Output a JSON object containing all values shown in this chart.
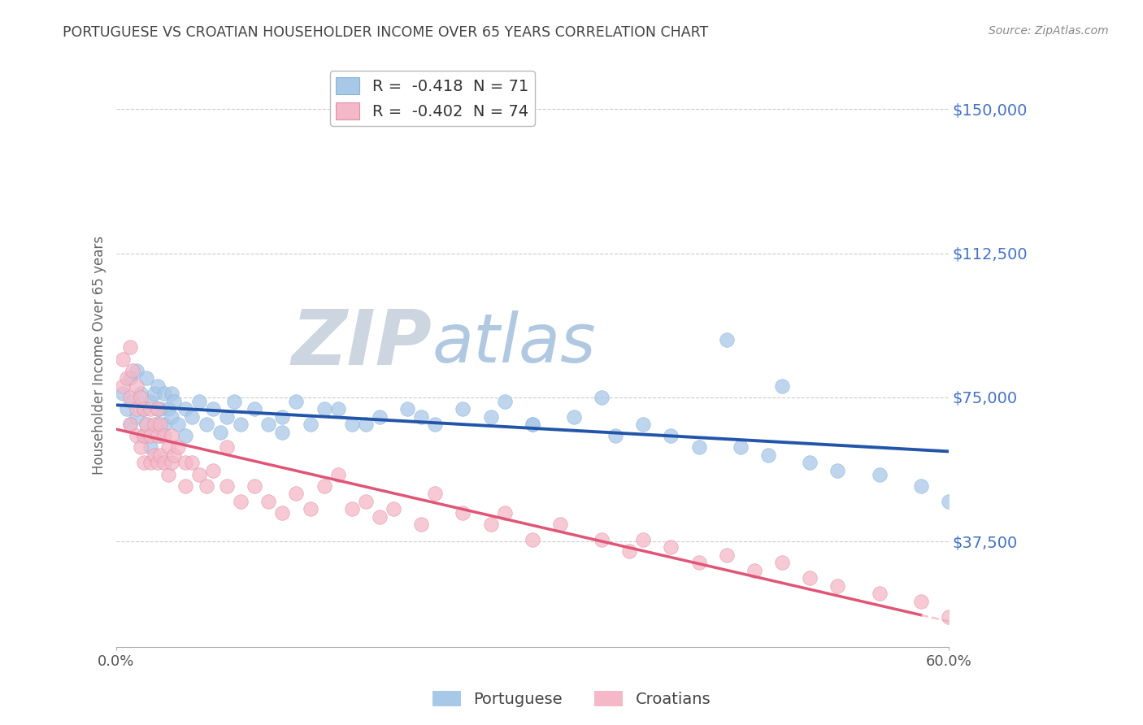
{
  "title": "PORTUGUESE VS CROATIAN HOUSEHOLDER INCOME OVER 65 YEARS CORRELATION CHART",
  "source": "Source: ZipAtlas.com",
  "ylabel": "Householder Income Over 65 years",
  "yticks": [
    37500,
    75000,
    112500,
    150000
  ],
  "xlim": [
    0.0,
    0.6
  ],
  "ylim": [
    10000,
    162000
  ],
  "color_blue": "#a8c8e8",
  "color_pink": "#f4b8c8",
  "color_blue_line": "#2255aa",
  "color_pink_line": "#e05575",
  "color_pink_dash": "#e8a0b0",
  "axis_label_color": "#4472c4",
  "watermark_zip_color": "#d5dde8",
  "watermark_atlas_color": "#b8cce0",
  "portuguese_x": [
    0.005,
    0.008,
    0.01,
    0.01,
    0.012,
    0.015,
    0.015,
    0.018,
    0.02,
    0.02,
    0.022,
    0.022,
    0.025,
    0.025,
    0.028,
    0.03,
    0.03,
    0.03,
    0.032,
    0.032,
    0.035,
    0.035,
    0.038,
    0.04,
    0.04,
    0.042,
    0.045,
    0.05,
    0.05,
    0.055,
    0.06,
    0.065,
    0.07,
    0.075,
    0.08,
    0.085,
    0.09,
    0.1,
    0.11,
    0.12,
    0.13,
    0.14,
    0.15,
    0.17,
    0.19,
    0.21,
    0.23,
    0.25,
    0.27,
    0.3,
    0.33,
    0.36,
    0.38,
    0.4,
    0.42,
    0.45,
    0.47,
    0.5,
    0.52,
    0.55,
    0.58,
    0.6,
    0.48,
    0.44,
    0.35,
    0.3,
    0.28,
    0.22,
    0.18,
    0.16,
    0.12
  ],
  "portuguese_y": [
    76000,
    72000,
    80000,
    68000,
    74000,
    82000,
    70000,
    76000,
    72000,
    65000,
    80000,
    68000,
    74000,
    62000,
    76000,
    72000,
    68000,
    78000,
    65000,
    72000,
    76000,
    68000,
    72000,
    76000,
    70000,
    74000,
    68000,
    72000,
    65000,
    70000,
    74000,
    68000,
    72000,
    66000,
    70000,
    74000,
    68000,
    72000,
    68000,
    70000,
    74000,
    68000,
    72000,
    68000,
    70000,
    72000,
    68000,
    72000,
    70000,
    68000,
    70000,
    65000,
    68000,
    65000,
    62000,
    62000,
    60000,
    58000,
    56000,
    55000,
    52000,
    48000,
    78000,
    90000,
    75000,
    68000,
    74000,
    70000,
    68000,
    72000,
    66000
  ],
  "croatian_x": [
    0.005,
    0.005,
    0.008,
    0.01,
    0.01,
    0.01,
    0.012,
    0.015,
    0.015,
    0.015,
    0.018,
    0.018,
    0.02,
    0.02,
    0.02,
    0.022,
    0.025,
    0.025,
    0.025,
    0.028,
    0.028,
    0.03,
    0.03,
    0.03,
    0.032,
    0.032,
    0.035,
    0.035,
    0.038,
    0.038,
    0.04,
    0.04,
    0.042,
    0.045,
    0.05,
    0.05,
    0.055,
    0.06,
    0.065,
    0.07,
    0.08,
    0.09,
    0.1,
    0.11,
    0.12,
    0.13,
    0.14,
    0.15,
    0.17,
    0.18,
    0.19,
    0.2,
    0.22,
    0.25,
    0.27,
    0.3,
    0.32,
    0.35,
    0.37,
    0.4,
    0.42,
    0.44,
    0.46,
    0.48,
    0.5,
    0.52,
    0.55,
    0.58,
    0.6,
    0.38,
    0.28,
    0.23,
    0.16,
    0.08
  ],
  "croatian_y": [
    78000,
    85000,
    80000,
    88000,
    75000,
    68000,
    82000,
    78000,
    72000,
    65000,
    75000,
    62000,
    72000,
    65000,
    58000,
    68000,
    72000,
    65000,
    58000,
    68000,
    60000,
    72000,
    65000,
    58000,
    68000,
    60000,
    65000,
    58000,
    62000,
    55000,
    65000,
    58000,
    60000,
    62000,
    58000,
    52000,
    58000,
    55000,
    52000,
    56000,
    52000,
    48000,
    52000,
    48000,
    45000,
    50000,
    46000,
    52000,
    46000,
    48000,
    44000,
    46000,
    42000,
    45000,
    42000,
    38000,
    42000,
    38000,
    35000,
    36000,
    32000,
    34000,
    30000,
    32000,
    28000,
    26000,
    24000,
    22000,
    18000,
    38000,
    45000,
    50000,
    55000,
    62000
  ]
}
